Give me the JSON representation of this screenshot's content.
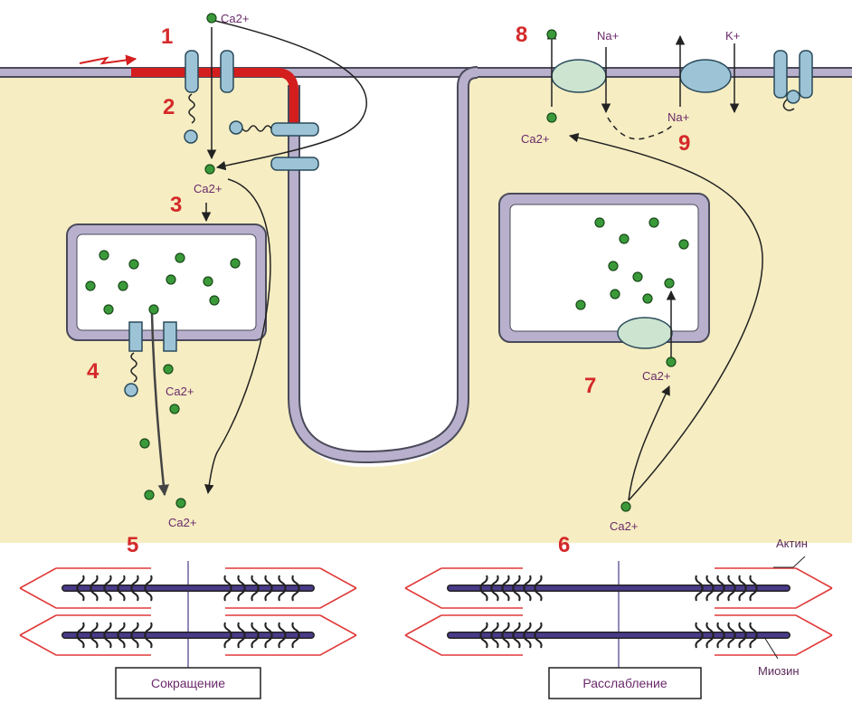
{
  "labels": {
    "n1": "1",
    "n2": "2",
    "n3": "3",
    "n4": "4",
    "n5": "5",
    "n6": "6",
    "n7": "7",
    "n8": "8",
    "n9": "9"
  },
  "ions": {
    "ca_top": "Ca2+",
    "ca_3": "Ca2+",
    "ca_4": "Ca2+",
    "ca_5": "Ca2+",
    "ca_6": "Ca2+",
    "ca_7": "Ca2+",
    "ca_8": "Ca2+",
    "na_top": "Na+",
    "na_bottom": "Na+",
    "k_top": "K+"
  },
  "structures": {
    "actin": "Актин",
    "myosin": "Миозин"
  },
  "states": {
    "contraction": "Сокращение",
    "relaxation": "Расслабление"
  },
  "colors": {
    "cytoplasm": "#f6edc2",
    "membrane": "#b8b0cc",
    "membrane_edge": "#4a4a5a",
    "depolarized": "#d41e1e",
    "channel": "#9cc4d6",
    "pump": "#cce4d0",
    "calcium": "#3a9a3a",
    "filament": "#4a3a8a",
    "actin_line": "#e03a3a"
  }
}
